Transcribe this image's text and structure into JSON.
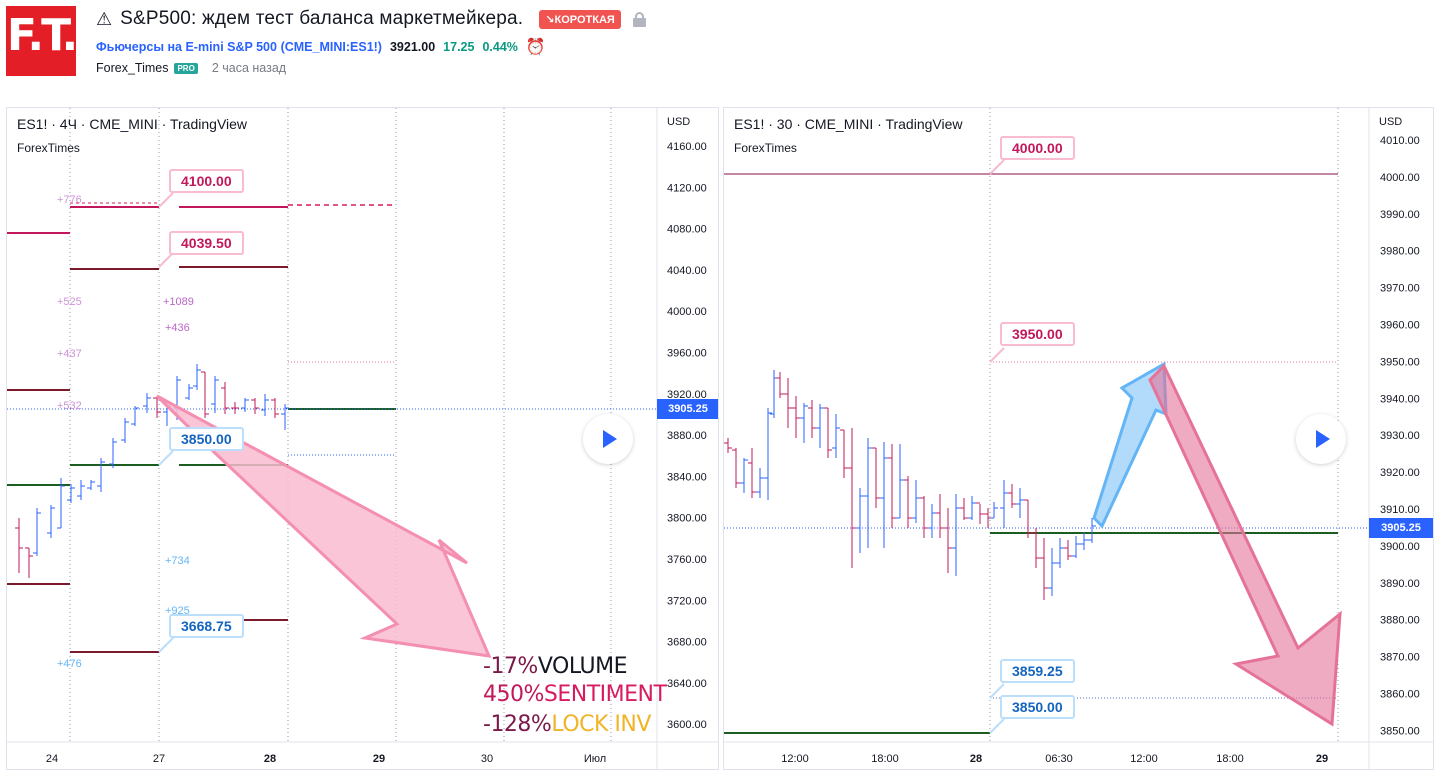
{
  "header": {
    "logo_text": "F.T.",
    "warning_icon": "warning-icon",
    "title": "S&P500: ждем тест баланса маркетмейкера.",
    "short_badge": "↘КОРОТКАЯ",
    "symbol_name": "Фьючерсы на E-mini S&P 500",
    "symbol_code": "(CME_MINI:ES1!)",
    "price": "3921.00",
    "change": "17.25",
    "change_pct": "0.44%",
    "author": "Forex_Times",
    "pro_badge": "PRO",
    "published": "2 часа назад"
  },
  "left_chart": {
    "title": "ES1! · 4Ч · CME_MINI · TradingView",
    "subtitle": "ForexTimes",
    "currency": "USD",
    "price_labels": [
      "4160.00",
      "4120.00",
      "4080.00",
      "4040.00",
      "4000.00",
      "3960.00",
      "3920.00",
      "3880.00",
      "3840.00",
      "3800.00",
      "3760.00",
      "3720.00",
      "3680.00",
      "3640.00",
      "3600.00"
    ],
    "last_price": "3905.25",
    "time_labels": [
      "24",
      "27",
      "28",
      "29",
      "30",
      "Июл"
    ],
    "callouts": {
      "c4100": "4100.00",
      "c4039": "4039.50",
      "c3850": "3850.00",
      "c3668": "3668.75"
    },
    "level_labels": [
      "+776",
      "+525",
      "+1089",
      "+436",
      "+437",
      "+532",
      "+734",
      "+925",
      "+476"
    ],
    "stats": [
      {
        "value": "-17%",
        "label": "VOLUME"
      },
      {
        "value": "450%",
        "label": "SENTIMENT"
      },
      {
        "value": "-128%",
        "label": "LOCK INV"
      }
    ],
    "colors": {
      "up": "#2962ff",
      "down": "#c2185b",
      "arrow": "#f48fb1"
    }
  },
  "right_chart": {
    "title": "ES1! · 30 · CME_MINI · TradingView",
    "subtitle": "ForexTimes",
    "currency": "USD",
    "price_labels": [
      "4010.00",
      "4000.00",
      "3990.00",
      "3980.00",
      "3970.00",
      "3960.00",
      "3950.00",
      "3940.00",
      "3930.00",
      "3920.00",
      "3910.00",
      "3900.00",
      "3890.00",
      "3880.00",
      "3870.00",
      "3860.00",
      "3850.00"
    ],
    "last_price": "3905.25",
    "time_labels": [
      "12:00",
      "18:00",
      "28",
      "06:30",
      "12:00",
      "18:00",
      "29"
    ],
    "callouts": {
      "c4000": "4000.00",
      "c3950": "3950.00",
      "c3859": "3859.25",
      "c3850": "3850.00"
    },
    "colors": {
      "up_arrow": "#90caf9",
      "down_arrow": "#e57398"
    }
  }
}
